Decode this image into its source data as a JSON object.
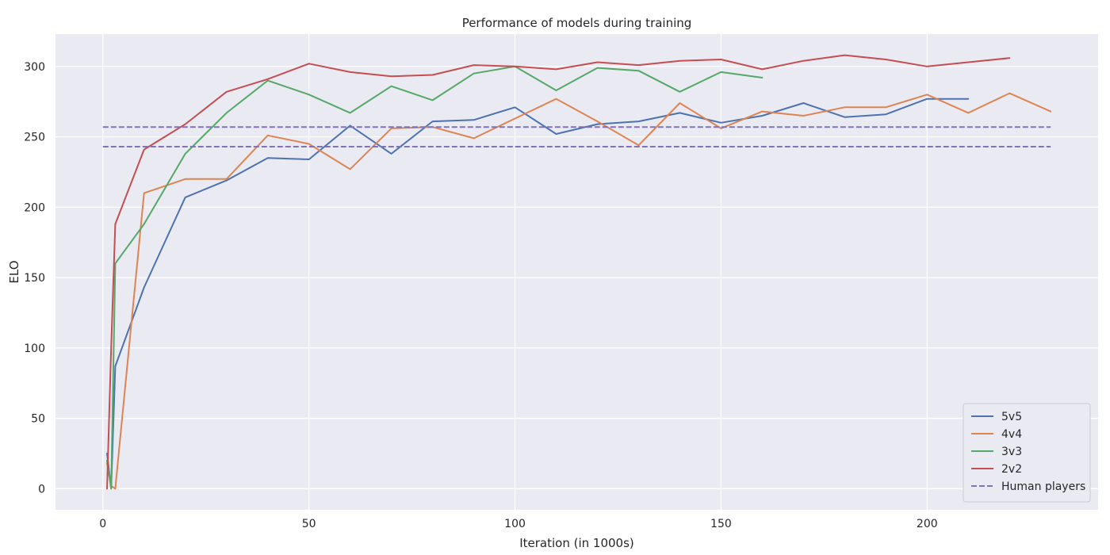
{
  "chart_data": {
    "type": "line",
    "title": "Performance of models during training",
    "xlabel": "Iteration (in 1000s)",
    "ylabel": "ELO",
    "xlim": [
      -11.5,
      241.5
    ],
    "ylim": [
      -15,
      323
    ],
    "xticks": [
      0,
      50,
      100,
      150,
      200
    ],
    "yticks": [
      0,
      50,
      100,
      150,
      200,
      250,
      300
    ],
    "grid": true,
    "legend_position": "bottom-right",
    "series": [
      {
        "name": "5v5",
        "color": "#4c72b0",
        "style": "solid",
        "x": [
          1,
          2,
          3,
          10,
          20,
          30,
          40,
          50,
          60,
          70,
          80,
          90,
          100,
          110,
          120,
          130,
          140,
          150,
          160,
          170,
          180,
          190,
          200,
          210
        ],
        "y": [
          25,
          0,
          87,
          143,
          207,
          219,
          235,
          234,
          258,
          238,
          261,
          262,
          271,
          252,
          259,
          261,
          267,
          260,
          265,
          274,
          264,
          266,
          277,
          277
        ]
      },
      {
        "name": "4v4",
        "color": "#dd8452",
        "style": "solid",
        "x": [
          1,
          2,
          3,
          10,
          20,
          30,
          40,
          50,
          60,
          70,
          80,
          90,
          100,
          110,
          120,
          130,
          140,
          150,
          160,
          170,
          180,
          190,
          200,
          210,
          220,
          230
        ],
        "y": [
          18,
          2,
          0,
          210,
          220,
          220,
          251,
          245,
          227,
          256,
          257,
          249,
          263,
          277,
          261,
          244,
          274,
          256,
          268,
          265,
          271,
          271,
          280,
          267,
          281,
          268
        ]
      },
      {
        "name": "3v3",
        "color": "#55a868",
        "style": "solid",
        "x": [
          1,
          2,
          3,
          10,
          20,
          30,
          40,
          50,
          60,
          70,
          80,
          90,
          100,
          110,
          120,
          130,
          140,
          150,
          160
        ],
        "y": [
          20,
          0,
          160,
          188,
          238,
          267,
          290,
          280,
          267,
          286,
          276,
          295,
          300,
          283,
          299,
          297,
          282,
          296,
          292
        ]
      },
      {
        "name": "2v2",
        "color": "#c44e52",
        "style": "solid",
        "x": [
          1,
          2,
          3,
          10,
          20,
          30,
          40,
          50,
          60,
          70,
          80,
          90,
          100,
          110,
          120,
          130,
          140,
          150,
          160,
          170,
          180,
          190,
          200,
          210,
          220
        ],
        "y": [
          0,
          100,
          188,
          241,
          259,
          282,
          291,
          302,
          296,
          293,
          294,
          301,
          300,
          298,
          303,
          301,
          304,
          305,
          298,
          304,
          308,
          305,
          300,
          303,
          306
        ]
      },
      {
        "name": "Human players",
        "color": "#8172b3",
        "style": "dashed",
        "x": [
          0,
          230
        ],
        "y": [
          257,
          257
        ]
      },
      {
        "color": "#8172b3",
        "style": "dashed",
        "x": [
          0,
          230
        ],
        "y": [
          243,
          243
        ]
      }
    ]
  }
}
